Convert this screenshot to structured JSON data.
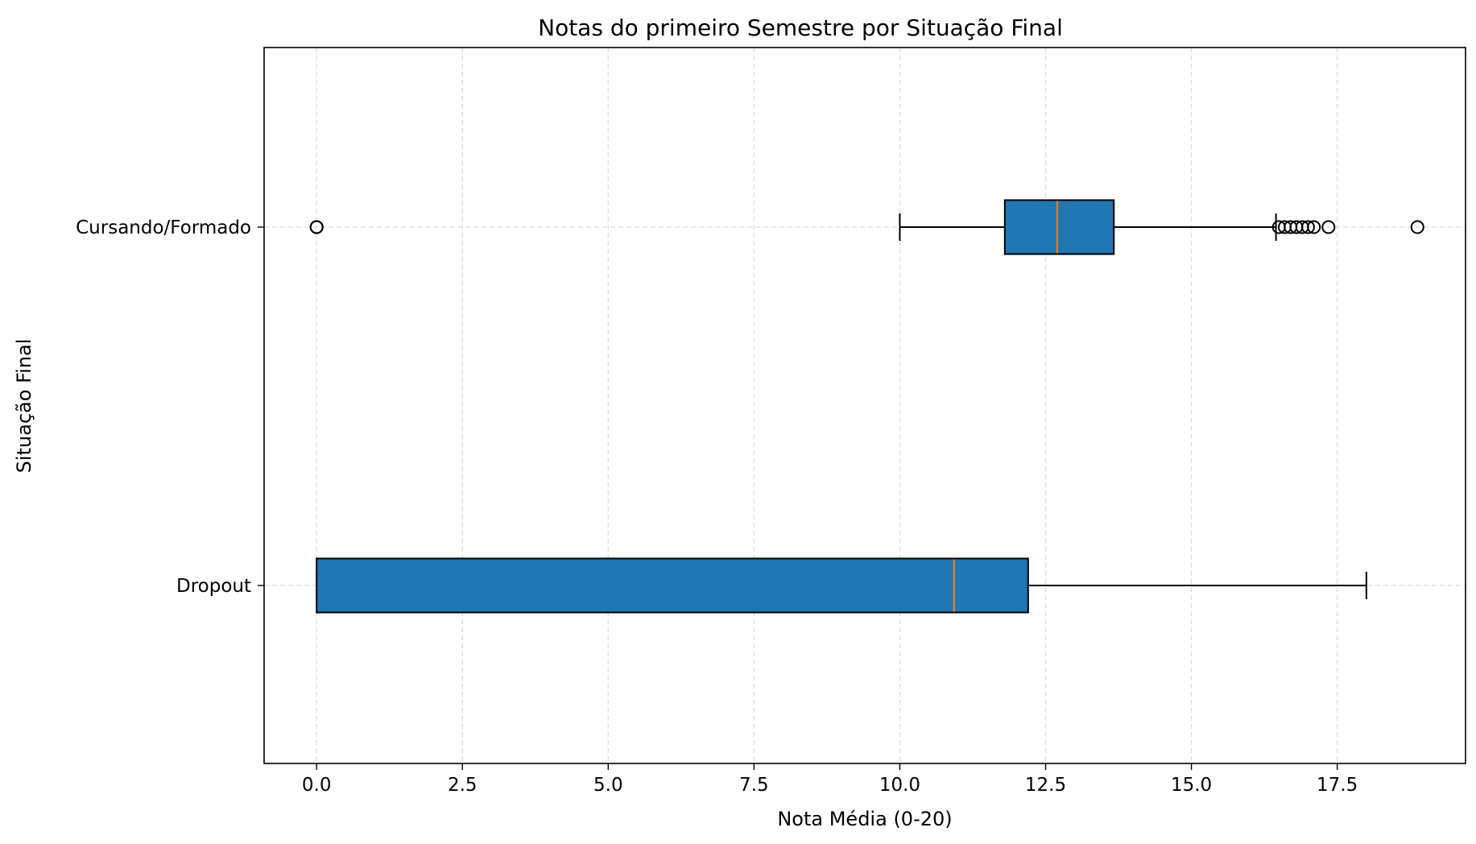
{
  "chart_data": {
    "type": "boxplot",
    "orientation": "horizontal",
    "title": "Notas do primeiro Semestre por Situação Final",
    "xlabel": "Nota Média (0-20)",
    "ylabel": "Situação Final",
    "xlim": [
      -0.9,
      19.7
    ],
    "x_ticks": [
      0.0,
      2.5,
      5.0,
      7.5,
      10.0,
      12.5,
      15.0,
      17.5
    ],
    "x_tick_labels": [
      "0.0",
      "2.5",
      "5.0",
      "7.5",
      "10.0",
      "12.5",
      "15.0",
      "17.5"
    ],
    "grid": true,
    "box_color": "#1f77b4",
    "median_color": "#ff7f0e",
    "categories": [
      "Cursando/Formado",
      "Dropout"
    ],
    "boxes": [
      {
        "label": "Cursando/Formado",
        "whisker_low": 10.0,
        "q1": 11.8,
        "median": 12.7,
        "q3": 13.67,
        "whisker_high": 16.45,
        "outliers": [
          0.0,
          0.0,
          0.0,
          16.5,
          16.6,
          16.7,
          16.8,
          16.9,
          17.0,
          17.1,
          17.35,
          18.875
        ]
      },
      {
        "label": "Dropout",
        "whisker_low": 0.0,
        "q1": 0.0,
        "median": 10.93,
        "q3": 12.2,
        "whisker_high": 18.0,
        "outliers": []
      }
    ]
  }
}
